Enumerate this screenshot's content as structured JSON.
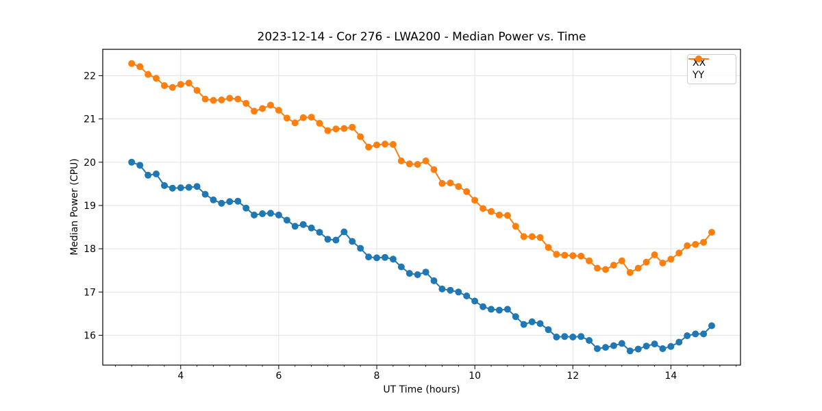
{
  "chart_data": {
    "type": "line",
    "title": "2023-12-14 - Cor 276 - LWA200 - Median Power vs. Time",
    "xlabel": "UT Time (hours)",
    "ylabel": "Median Power (CPU)",
    "xlim": [
      2.41,
      15.42
    ],
    "ylim": [
      15.31,
      22.61
    ],
    "xticks": [
      4,
      6,
      8,
      10,
      12,
      14
    ],
    "yticks": [
      16,
      17,
      18,
      19,
      20,
      21,
      22
    ],
    "x_minor_tick_step_hours": 0.3333,
    "grid": true,
    "legend_position": "upper right",
    "x": [
      3.0,
      3.167,
      3.333,
      3.5,
      3.667,
      3.833,
      4.0,
      4.167,
      4.333,
      4.5,
      4.667,
      4.833,
      5.0,
      5.167,
      5.333,
      5.5,
      5.667,
      5.833,
      6.0,
      6.167,
      6.333,
      6.5,
      6.667,
      6.833,
      7.0,
      7.167,
      7.333,
      7.5,
      7.667,
      7.833,
      8.0,
      8.167,
      8.333,
      8.5,
      8.667,
      8.833,
      9.0,
      9.167,
      9.333,
      9.5,
      9.667,
      9.833,
      10.0,
      10.167,
      10.333,
      10.5,
      10.667,
      10.833,
      11.0,
      11.167,
      11.333,
      11.5,
      11.667,
      11.833,
      12.0,
      12.167,
      12.333,
      12.5,
      12.667,
      12.833,
      13.0,
      13.167,
      13.333,
      13.5,
      13.667,
      13.833,
      14.0,
      14.167,
      14.333,
      14.5,
      14.667,
      14.833
    ],
    "series": [
      {
        "name": "XX",
        "color": "#1f77b4",
        "values": [
          20.0,
          19.93,
          19.7,
          19.73,
          19.46,
          19.4,
          19.41,
          19.42,
          19.44,
          19.26,
          19.13,
          19.05,
          19.09,
          19.1,
          18.94,
          18.78,
          18.81,
          18.82,
          18.78,
          18.66,
          18.52,
          18.56,
          18.48,
          18.38,
          18.22,
          18.2,
          18.39,
          18.17,
          18.01,
          17.81,
          17.79,
          17.8,
          17.76,
          17.58,
          17.43,
          17.4,
          17.46,
          17.26,
          17.07,
          17.04,
          17.0,
          16.91,
          16.79,
          16.66,
          16.6,
          16.58,
          16.6,
          16.43,
          16.25,
          16.31,
          16.27,
          16.13,
          15.96,
          15.97,
          15.96,
          15.97,
          15.88,
          15.69,
          15.72,
          15.76,
          15.81,
          15.64,
          15.68,
          15.75,
          15.8,
          15.69,
          15.74,
          15.84,
          15.99,
          16.03,
          16.03,
          16.22
        ]
      },
      {
        "name": "YY",
        "color": "#ff7f0e",
        "values": [
          22.28,
          22.21,
          22.03,
          21.94,
          21.77,
          21.73,
          21.8,
          21.83,
          21.66,
          21.46,
          21.43,
          21.44,
          21.48,
          21.46,
          21.36,
          21.18,
          21.24,
          21.32,
          21.2,
          21.02,
          20.91,
          21.03,
          21.04,
          20.9,
          20.73,
          20.77,
          20.78,
          20.81,
          20.59,
          20.35,
          20.4,
          20.42,
          20.41,
          20.03,
          19.96,
          19.95,
          20.03,
          19.83,
          19.51,
          19.52,
          19.44,
          19.32,
          19.12,
          18.93,
          18.86,
          18.78,
          18.77,
          18.52,
          18.28,
          18.28,
          18.26,
          18.03,
          17.87,
          17.85,
          17.84,
          17.83,
          17.72,
          17.55,
          17.52,
          17.62,
          17.72,
          17.45,
          17.55,
          17.69,
          17.86,
          17.67,
          17.76,
          17.9,
          18.07,
          18.1,
          18.15,
          18.38
        ]
      }
    ],
    "style": {
      "grid_color": "#e3e3e3",
      "spine_color": "#000000",
      "tick_label_color": "#000000",
      "background": "#ffffff"
    }
  }
}
